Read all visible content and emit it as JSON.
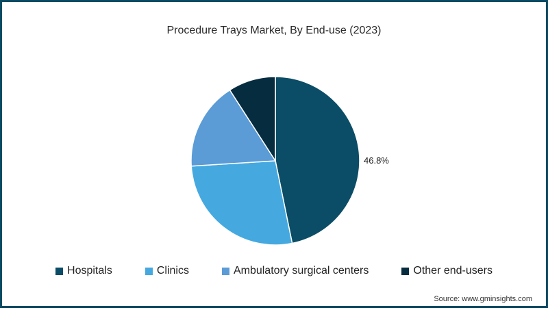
{
  "chart_data": {
    "type": "pie",
    "title": "Procedure Trays Market, By End-use (2023)",
    "categories": [
      "Hospitals",
      "Clinics",
      "Ambulatory surgical centers",
      "Other end-users"
    ],
    "values": [
      46.8,
      27.2,
      16.9,
      9.1
    ],
    "colors": [
      "#0b4d66",
      "#45a9e0",
      "#5b9bd6",
      "#062c40"
    ],
    "data_labels": {
      "Hospitals": "46.8%"
    },
    "legend_position": "bottom",
    "start_angle_deg": 0,
    "direction": "clockwise"
  },
  "header": {
    "title": "Procedure Trays Market, By End-use (2023)"
  },
  "labels": {
    "hospitals_pct": "46.8%"
  },
  "legend": {
    "items": [
      {
        "label": "Hospitals",
        "color": "#0b4d66"
      },
      {
        "label": "Clinics",
        "color": "#45a9e0"
      },
      {
        "label": "Ambulatory surgical centers",
        "color": "#5b9bd6"
      },
      {
        "label": "Other end-users",
        "color": "#062c40"
      }
    ]
  },
  "footer": {
    "source": "Source: www.gminsights.com"
  },
  "colors": {
    "border": "#0b4a63"
  }
}
